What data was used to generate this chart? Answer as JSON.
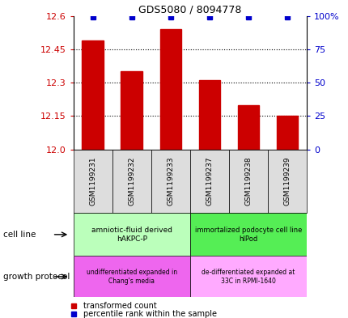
{
  "title": "GDS5080 / 8094778",
  "samples": [
    "GSM1199231",
    "GSM1199232",
    "GSM1199233",
    "GSM1199237",
    "GSM1199238",
    "GSM1199239"
  ],
  "bar_values": [
    12.49,
    12.35,
    12.54,
    12.31,
    12.2,
    12.15
  ],
  "percentile_values": [
    100,
    100,
    100,
    100,
    100,
    100
  ],
  "bar_color": "#cc0000",
  "dot_color": "#0000cc",
  "ylim_left": [
    12.0,
    12.6
  ],
  "ylim_right": [
    0,
    100
  ],
  "yticks_left": [
    12.0,
    12.15,
    12.3,
    12.45,
    12.6
  ],
  "yticks_right": [
    0,
    25,
    50,
    75,
    100
  ],
  "cell_line_label1": "amniotic-fluid derived\nhAKPC-P",
  "cell_line_label2": "immortalized podocyte cell line\nhIPod",
  "cell_line_color1": "#bbffbb",
  "cell_line_color2": "#55ee55",
  "growth_label1": "undifferentiated expanded in\nChang's media",
  "growth_label2": "de-differentiated expanded at\n33C in RPMI-1640",
  "growth_color1": "#ee66ee",
  "growth_color2": "#ffaaff",
  "bar_width": 0.55,
  "tick_color_left": "#cc0000",
  "tick_color_right": "#0000cc",
  "grid_yticks": [
    12.15,
    12.3,
    12.45
  ],
  "sample_box_color": "#dddddd"
}
